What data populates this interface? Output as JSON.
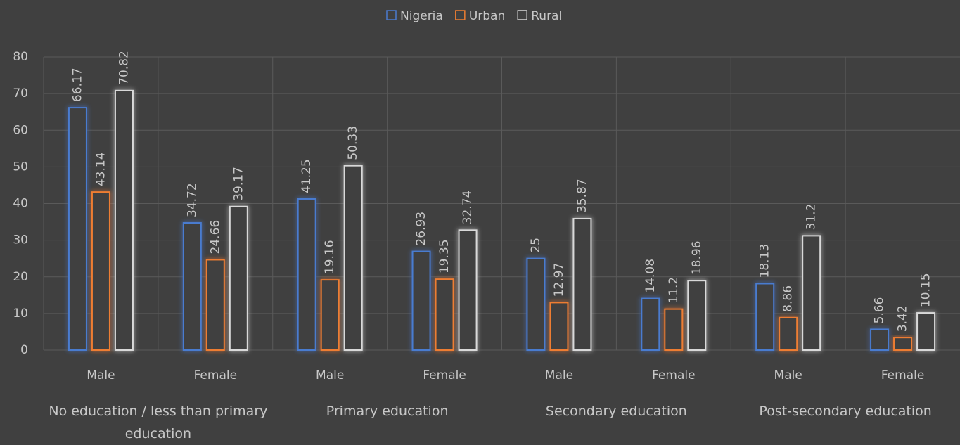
{
  "chart_data": {
    "type": "bar",
    "categories": [
      "Male",
      "Female",
      "Male",
      "Female",
      "Male",
      "Female",
      "Male",
      "Female"
    ],
    "groups": [
      "No education / less than primary education",
      "Primary education",
      "Secondary education",
      "Post-secondary education"
    ],
    "series": [
      {
        "name": "Nigeria",
        "color": "#4a7bd0",
        "values": [
          66.17,
          34.72,
          41.25,
          26.93,
          25,
          14.08,
          18.13,
          5.66
        ]
      },
      {
        "name": "Urban",
        "color": "#ee7d31",
        "values": [
          43.14,
          24.66,
          19.16,
          19.35,
          12.97,
          11.2,
          8.86,
          3.42
        ]
      },
      {
        "name": "Rural",
        "color": "#d9d9d9",
        "values": [
          70.82,
          39.17,
          50.33,
          32.74,
          35.87,
          18.96,
          31.2,
          10.15
        ]
      }
    ],
    "ylim": [
      0,
      80
    ],
    "yticks": [
      0,
      10,
      20,
      30,
      40,
      50,
      60,
      70,
      80
    ],
    "grid": true,
    "legend": "top"
  }
}
